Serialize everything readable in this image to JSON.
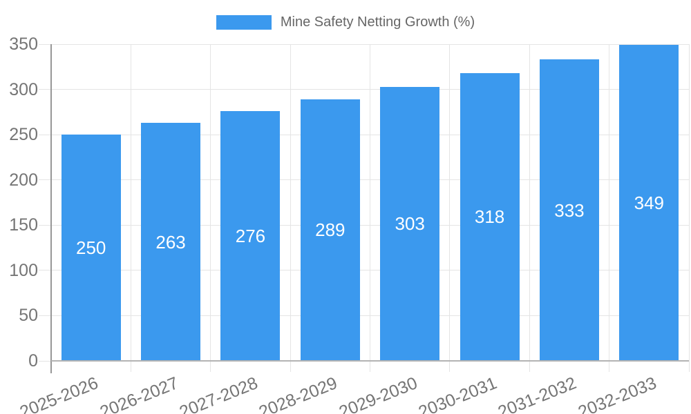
{
  "chart_data": {
    "type": "bar",
    "title": "Mine Safety Netting Growth (%)",
    "categories": [
      "2025-2026",
      "2026-2027",
      "2027-2028",
      "2028-2029",
      "2029-2030",
      "2030-2031",
      "2031-2032",
      "2032-2033"
    ],
    "values": [
      250,
      263,
      276,
      289,
      303,
      318,
      333,
      349
    ],
    "xlabel": "",
    "ylabel": "",
    "ylim": [
      0,
      350
    ],
    "yticks": [
      0,
      50,
      100,
      150,
      200,
      250,
      300,
      350
    ],
    "grid": true,
    "legend_position": "top",
    "value_labels": "centered inside bars",
    "colors": {
      "bar": "#3B99EE",
      "bar_value_label": "#FFFFFF",
      "grid_line": "#E4E4E4",
      "y_axis_line": "#979797",
      "x_baseline": "#B3B3B3",
      "tick_label_text": "#757575",
      "legend_text": "#666666",
      "background": "#FFFFFF"
    }
  }
}
